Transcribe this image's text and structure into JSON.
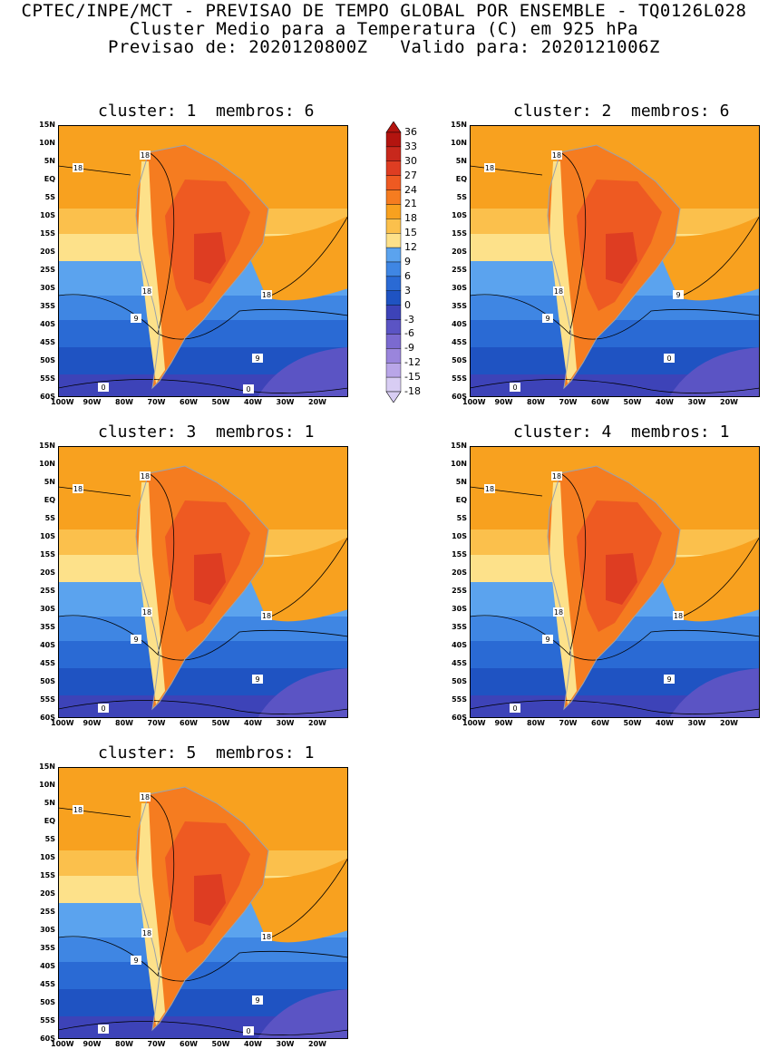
{
  "header": {
    "line1": "CPTEC/INPE/MCT - PREVISAO DE TEMPO GLOBAL POR ENSEMBLE - TQ0126L028",
    "line2": "Cluster Medio para a Temperatura (C) em 925 hPa",
    "line3": "Previsao de: 2020120800Z   Valido para: 2020121006Z"
  },
  "panels": [
    {
      "title": "cluster: 1  membros: 6"
    },
    {
      "title": "cluster: 2  membros: 6"
    },
    {
      "title": "cluster: 3  membros: 1"
    },
    {
      "title": "cluster: 4  membros: 1"
    },
    {
      "title": "cluster: 5  membros: 1"
    }
  ],
  "axes": {
    "lat_labels": [
      "15N",
      "10N",
      "5N",
      "EQ",
      "5S",
      "10S",
      "15S",
      "20S",
      "25S",
      "30S",
      "35S",
      "40S",
      "45S",
      "50S",
      "55S",
      "60S"
    ],
    "lon_labels": [
      "100W",
      "90W",
      "80W",
      "70W",
      "60W",
      "50W",
      "40W",
      "30W",
      "20W"
    ]
  },
  "colorbar": {
    "labels": [
      "36",
      "33",
      "30",
      "27",
      "24",
      "21",
      "18",
      "15",
      "12",
      "9",
      "6",
      "3",
      "0",
      "-3",
      "-6",
      "-9",
      "-12",
      "-15",
      "-18"
    ],
    "colors": [
      "#b3140f",
      "#c8281c",
      "#de3d22",
      "#ee5a22",
      "#f57c20",
      "#f8a11f",
      "#fbc04c",
      "#fde18a",
      "#5ba3ee",
      "#3f86e3",
      "#2a6ad4",
      "#1f53c2",
      "#3d43b8",
      "#5b54c4",
      "#7b6ad0",
      "#9a85dc",
      "#b9a6e8",
      "#d8cdf3"
    ]
  },
  "contour_labels": {
    "p1": [
      "18",
      "18",
      "18",
      "18",
      "9",
      "9",
      "0",
      "0"
    ],
    "p2": [
      "18",
      "18",
      "18",
      "9",
      "9",
      "0",
      "0"
    ],
    "p3": [
      "18",
      "18",
      "18",
      "18",
      "9",
      "9",
      "0"
    ],
    "p4": [
      "18",
      "18",
      "18",
      "18",
      "9",
      "9",
      "0"
    ],
    "p5": [
      "18",
      "18",
      "18",
      "18",
      "9",
      "9",
      "0",
      "0"
    ]
  }
}
